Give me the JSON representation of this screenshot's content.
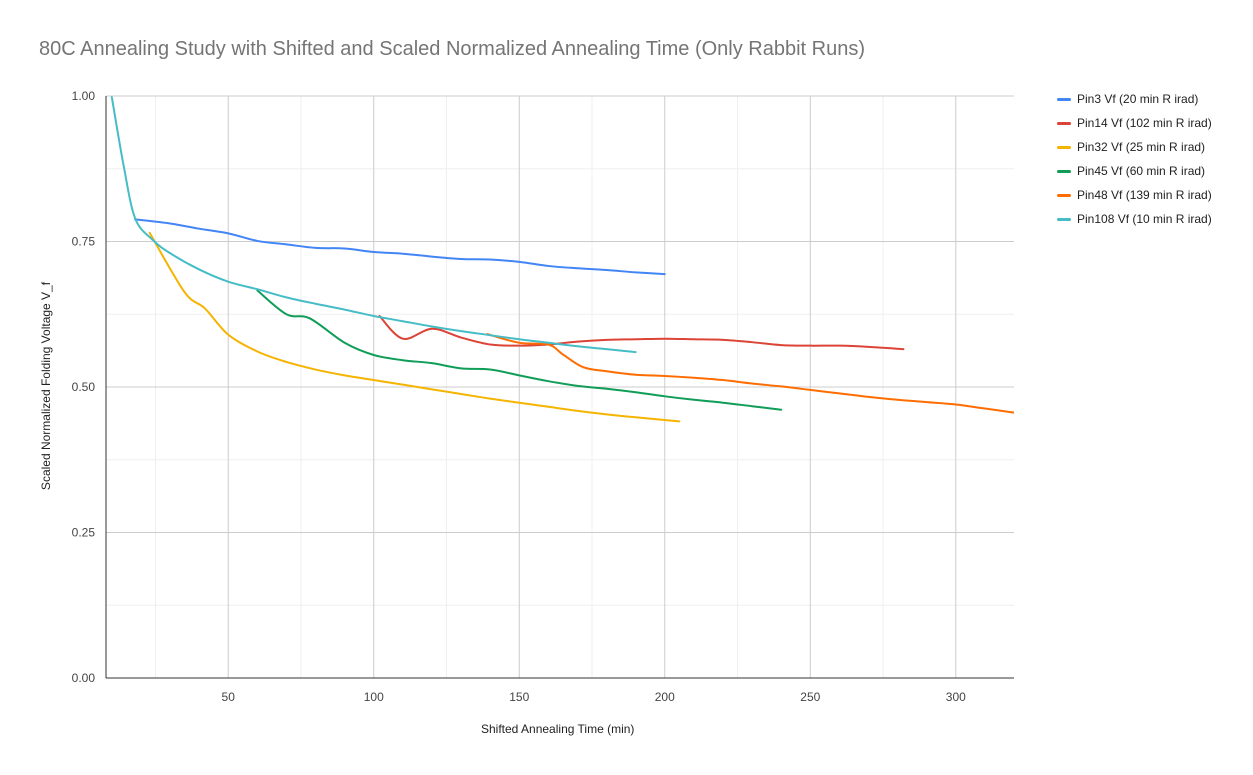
{
  "chart_data": {
    "type": "line",
    "title": "80C Annealing Study with Shifted and Scaled Normalized Annealing Time (Only Rabbit Runs)",
    "xlabel": "Shifted Annealing Time (min)",
    "ylabel": "Scaled Normalized Folding Voltage V_f",
    "xlim": [
      8,
      320
    ],
    "ylim": [
      0,
      1
    ],
    "x_ticks": [
      50,
      100,
      150,
      200,
      250,
      300
    ],
    "x_tick_labels": [
      "50",
      "100",
      "150",
      "200",
      "250",
      "300"
    ],
    "y_ticks": [
      0,
      0.25,
      0.5,
      0.75,
      1.0
    ],
    "y_tick_labels": [
      "0.00",
      "0.25",
      "0.50",
      "0.75",
      "1.00"
    ],
    "grid": true,
    "legend_position": "right",
    "series": [
      {
        "name": "Pin3 Vf (20 min R irad)",
        "color": "#4285f4",
        "x": [
          18,
          30,
          40,
          50,
          60,
          70,
          80,
          90,
          100,
          110,
          120,
          130,
          140,
          150,
          160,
          170,
          180,
          190,
          200
        ],
        "y": [
          0.788,
          0.781,
          0.772,
          0.764,
          0.751,
          0.745,
          0.739,
          0.738,
          0.732,
          0.729,
          0.724,
          0.72,
          0.719,
          0.715,
          0.708,
          0.704,
          0.701,
          0.697,
          0.694
        ]
      },
      {
        "name": "Pin14 Vf (102 min R irad)",
        "color": "#db4437",
        "x": [
          102,
          110,
          120,
          130,
          140,
          150,
          160,
          170,
          180,
          190,
          200,
          210,
          220,
          230,
          240,
          250,
          260,
          270,
          282
        ],
        "y": [
          0.622,
          0.583,
          0.6,
          0.585,
          0.573,
          0.571,
          0.573,
          0.578,
          0.581,
          0.582,
          0.583,
          0.582,
          0.581,
          0.577,
          0.572,
          0.571,
          0.571,
          0.569,
          0.565
        ]
      },
      {
        "name": "Pin32 Vf (25 min R irad)",
        "color": "#f4b400",
        "x": [
          23,
          35,
          42,
          50,
          60,
          70,
          80,
          90,
          100,
          110,
          120,
          130,
          140,
          150,
          160,
          170,
          180,
          190,
          205
        ],
        "y": [
          0.765,
          0.663,
          0.635,
          0.59,
          0.561,
          0.543,
          0.53,
          0.52,
          0.512,
          0.504,
          0.496,
          0.488,
          0.48,
          0.473,
          0.466,
          0.459,
          0.453,
          0.448,
          0.441
        ]
      },
      {
        "name": "Pin45 Vf (60 min R irad)",
        "color": "#0f9d58",
        "x": [
          60,
          70,
          78,
          90,
          100,
          110,
          120,
          130,
          140,
          150,
          160,
          170,
          180,
          190,
          200,
          210,
          220,
          230,
          240
        ],
        "y": [
          0.666,
          0.625,
          0.618,
          0.576,
          0.555,
          0.546,
          0.541,
          0.532,
          0.53,
          0.52,
          0.51,
          0.502,
          0.497,
          0.491,
          0.484,
          0.478,
          0.473,
          0.467,
          0.461
        ]
      },
      {
        "name": "Pin48 Vf (139 min R irad)",
        "color": "#ff6d00",
        "x": [
          139,
          150,
          160,
          165,
          172,
          180,
          190,
          200,
          210,
          220,
          230,
          240,
          250,
          260,
          270,
          280,
          290,
          300,
          310,
          320
        ],
        "y": [
          0.591,
          0.576,
          0.573,
          0.556,
          0.534,
          0.527,
          0.521,
          0.519,
          0.516,
          0.512,
          0.506,
          0.501,
          0.495,
          0.489,
          0.483,
          0.478,
          0.474,
          0.47,
          0.463,
          0.456
        ]
      },
      {
        "name": "Pin108 Vf (10 min R irad)",
        "color": "#46bdc6",
        "x": [
          10,
          14,
          18,
          24,
          30,
          40,
          50,
          60,
          70,
          80,
          90,
          100,
          110,
          120,
          130,
          140,
          150,
          160,
          170,
          180,
          190
        ],
        "y": [
          0.998,
          0.882,
          0.79,
          0.753,
          0.73,
          0.702,
          0.681,
          0.668,
          0.654,
          0.643,
          0.633,
          0.622,
          0.613,
          0.604,
          0.596,
          0.589,
          0.582,
          0.576,
          0.57,
          0.565,
          0.56
        ]
      }
    ]
  }
}
